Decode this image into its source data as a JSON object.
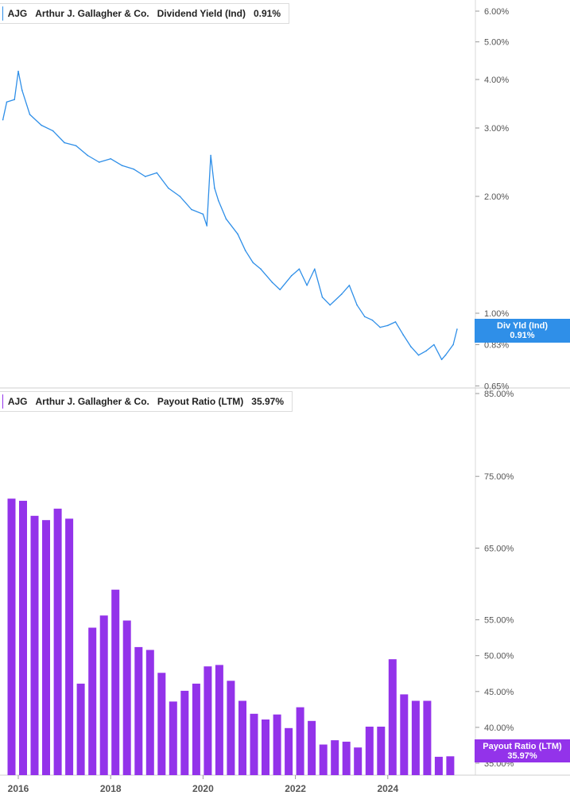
{
  "colors": {
    "line": "#2f8fe8",
    "bar": "#9333ea",
    "grid": "#dcdcdc",
    "text": "#555555"
  },
  "legend_top": {
    "ticker": "AJG",
    "company": "Arthur J. Gallagher & Co.",
    "metric": "Dividend Yield (Ind)",
    "value": "0.91%"
  },
  "legend_bottom": {
    "ticker": "AJG",
    "company": "Arthur J. Gallagher & Co.",
    "metric": "Payout Ratio (LTM)",
    "value": "35.97%"
  },
  "flag_top": {
    "label": "Div Yld (Ind)",
    "value": "0.91%"
  },
  "flag_bottom": {
    "label": "Payout Ratio (LTM)",
    "value": "35.97%"
  },
  "x_axis": {
    "ticks": [
      "2016",
      "2018",
      "2020",
      "2022",
      "2024"
    ]
  },
  "chart_data": [
    {
      "type": "line",
      "title": "Dividend Yield (Ind)",
      "series": [
        {
          "name": "Div Yld (Ind)"
        }
      ],
      "y_scale": "log",
      "ylim": [
        0.65,
        6.4
      ],
      "y_ticks": [
        "6.00%",
        "5.00%",
        "4.00%",
        "3.00%",
        "2.00%",
        "1.00%",
        "0.83%",
        "0.65%"
      ],
      "points": [
        [
          "2015-09",
          3.15
        ],
        [
          "2015-10",
          3.5
        ],
        [
          "2015-12",
          3.55
        ],
        [
          "2016-01",
          4.2
        ],
        [
          "2016-02",
          3.75
        ],
        [
          "2016-04",
          3.25
        ],
        [
          "2016-07",
          3.05
        ],
        [
          "2016-10",
          2.95
        ],
        [
          "2017-01",
          2.75
        ],
        [
          "2017-04",
          2.7
        ],
        [
          "2017-07",
          2.55
        ],
        [
          "2017-10",
          2.45
        ],
        [
          "2018-01",
          2.5
        ],
        [
          "2018-04",
          2.4
        ],
        [
          "2018-07",
          2.35
        ],
        [
          "2018-10",
          2.25
        ],
        [
          "2019-01",
          2.3
        ],
        [
          "2019-04",
          2.1
        ],
        [
          "2019-07",
          2.0
        ],
        [
          "2019-10",
          1.85
        ],
        [
          "2020-01",
          1.8
        ],
        [
          "2020-02",
          1.68
        ],
        [
          "2020-03",
          2.55
        ],
        [
          "2020-04",
          2.1
        ],
        [
          "2020-05",
          1.95
        ],
        [
          "2020-07",
          1.75
        ],
        [
          "2020-10",
          1.6
        ],
        [
          "2020-12",
          1.45
        ],
        [
          "2021-02",
          1.35
        ],
        [
          "2021-04",
          1.3
        ],
        [
          "2021-07",
          1.2
        ],
        [
          "2021-09",
          1.15
        ],
        [
          "2021-12",
          1.25
        ],
        [
          "2022-02",
          1.3
        ],
        [
          "2022-04",
          1.18
        ],
        [
          "2022-06",
          1.3
        ],
        [
          "2022-08",
          1.1
        ],
        [
          "2022-10",
          1.05
        ],
        [
          "2023-01",
          1.12
        ],
        [
          "2023-03",
          1.18
        ],
        [
          "2023-05",
          1.05
        ],
        [
          "2023-07",
          0.98
        ],
        [
          "2023-09",
          0.96
        ],
        [
          "2023-11",
          0.92
        ],
        [
          "2024-01",
          0.93
        ],
        [
          "2024-03",
          0.95
        ],
        [
          "2024-05",
          0.88
        ],
        [
          "2024-07",
          0.82
        ],
        [
          "2024-09",
          0.78
        ],
        [
          "2024-11",
          0.8
        ],
        [
          "2025-01",
          0.83
        ],
        [
          "2025-03",
          0.76
        ],
        [
          "2025-04",
          0.78
        ],
        [
          "2025-06",
          0.83
        ],
        [
          "2025-07",
          0.91
        ]
      ],
      "last_value": 0.91
    },
    {
      "type": "bar",
      "title": "Payout Ratio (LTM)",
      "series": [
        {
          "name": "Payout Ratio (LTM)"
        }
      ],
      "ylim": [
        35,
        85
      ],
      "y_ticks": [
        "85.00%",
        "75.00%",
        "65.00%",
        "55.00%",
        "50.00%",
        "45.00%",
        "40.00%",
        "35.00%"
      ],
      "bars": [
        [
          "2015-10",
          71.9
        ],
        [
          "2016-01",
          71.6
        ],
        [
          "2016-04",
          69.5
        ],
        [
          "2016-07",
          68.9
        ],
        [
          "2016-10",
          70.5
        ],
        [
          "2017-01",
          69.1
        ],
        [
          "2017-04",
          46.1
        ],
        [
          "2017-07",
          53.9
        ],
        [
          "2017-10",
          55.6
        ],
        [
          "2018-01",
          59.2
        ],
        [
          "2018-04",
          54.9
        ],
        [
          "2018-07",
          51.2
        ],
        [
          "2018-10",
          50.8
        ],
        [
          "2019-01",
          47.6
        ],
        [
          "2019-04",
          43.6
        ],
        [
          "2019-07",
          45.1
        ],
        [
          "2019-10",
          46.1
        ],
        [
          "2020-01",
          48.5
        ],
        [
          "2020-04",
          48.7
        ],
        [
          "2020-07",
          46.5
        ],
        [
          "2020-10",
          43.7
        ],
        [
          "2021-01",
          41.9
        ],
        [
          "2021-04",
          41.1
        ],
        [
          "2021-07",
          41.8
        ],
        [
          "2021-10",
          39.9
        ],
        [
          "2022-01",
          42.8
        ],
        [
          "2022-04",
          40.9
        ],
        [
          "2022-07",
          37.6
        ],
        [
          "2022-10",
          38.2
        ],
        [
          "2023-01",
          38.0
        ],
        [
          "2023-04",
          37.2
        ],
        [
          "2023-07",
          40.1
        ],
        [
          "2023-10",
          40.1
        ],
        [
          "2024-01",
          49.5
        ],
        [
          "2024-04",
          44.6
        ],
        [
          "2024-07",
          43.7
        ],
        [
          "2024-10",
          43.7
        ],
        [
          "2025-01",
          35.9
        ],
        [
          "2025-04",
          35.97
        ]
      ],
      "last_value": 35.97
    }
  ]
}
